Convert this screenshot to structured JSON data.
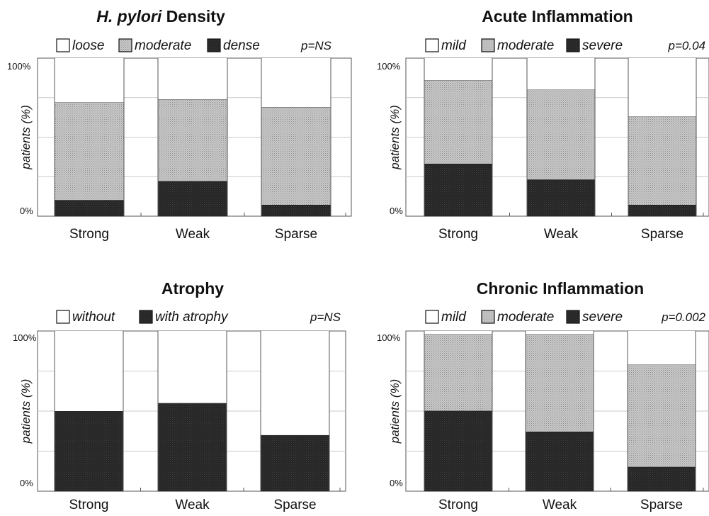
{
  "colors": {
    "dark": "#262626",
    "moderate": "#bdbdbd",
    "light": "#ffffff",
    "grid": "#c8c8c8",
    "axis": "#555555",
    "text": "#111111"
  },
  "chart_data": [
    {
      "type": "bar",
      "stacked": true,
      "title_italic": "H. pylori",
      "title_rest": " Density",
      "p_value": "p=NS",
      "ylabel": "patients (%)",
      "ytick_top": "100%",
      "ytick_bottom": "0%",
      "ylim": [
        0,
        100
      ],
      "grid": true,
      "legend_position": "top",
      "categories": [
        "Strong",
        "Weak",
        "Sparse"
      ],
      "series": [
        {
          "name": "dense",
          "fill": "dark",
          "values": [
            10,
            22,
            7
          ]
        },
        {
          "name": "moderate",
          "fill": "moderate",
          "values": [
            62,
            52,
            62
          ]
        },
        {
          "name": "loose",
          "fill": "light",
          "values": [
            28,
            26,
            31
          ]
        }
      ]
    },
    {
      "type": "bar",
      "stacked": true,
      "title": "Acute Inflammation",
      "p_value": "p=0.04",
      "ylabel": "patients (%)",
      "ytick_top": "100%",
      "ytick_bottom": "0%",
      "ylim": [
        0,
        100
      ],
      "grid": true,
      "legend_position": "top",
      "categories": [
        "Strong",
        "Weak",
        "Sparse"
      ],
      "series": [
        {
          "name": "severe",
          "fill": "dark",
          "values": [
            33,
            23,
            7
          ]
        },
        {
          "name": "moderate",
          "fill": "moderate",
          "values": [
            53,
            57,
            56
          ]
        },
        {
          "name": "mild",
          "fill": "light",
          "values": [
            14,
            20,
            37
          ]
        }
      ]
    },
    {
      "type": "bar",
      "stacked": true,
      "title": "Atrophy",
      "p_value": "p=NS",
      "ylabel": "patients (%)",
      "ytick_top": "100%",
      "ytick_bottom": "0%",
      "ylim": [
        0,
        100
      ],
      "grid": true,
      "legend_position": "top",
      "categories": [
        "Strong",
        "Weak",
        "Sparse"
      ],
      "series": [
        {
          "name": "with atrophy",
          "fill": "dark",
          "values": [
            50,
            55,
            35
          ]
        },
        {
          "name": "without",
          "fill": "light",
          "values": [
            50,
            45,
            65
          ]
        }
      ]
    },
    {
      "type": "bar",
      "stacked": true,
      "title": "Chronic Inflammation",
      "p_value": "p=0.002",
      "ylabel": "patients (%)",
      "ytick_top": "100%",
      "ytick_bottom": "0%",
      "ylim": [
        0,
        100
      ],
      "grid": true,
      "legend_position": "top",
      "categories": [
        "Strong",
        "Weak",
        "Sparse"
      ],
      "series": [
        {
          "name": "severe",
          "fill": "dark",
          "values": [
            50,
            37,
            15
          ]
        },
        {
          "name": "moderate",
          "fill": "moderate",
          "values": [
            48,
            61,
            64
          ]
        },
        {
          "name": "mild",
          "fill": "light",
          "values": [
            2,
            2,
            21
          ]
        }
      ]
    }
  ]
}
